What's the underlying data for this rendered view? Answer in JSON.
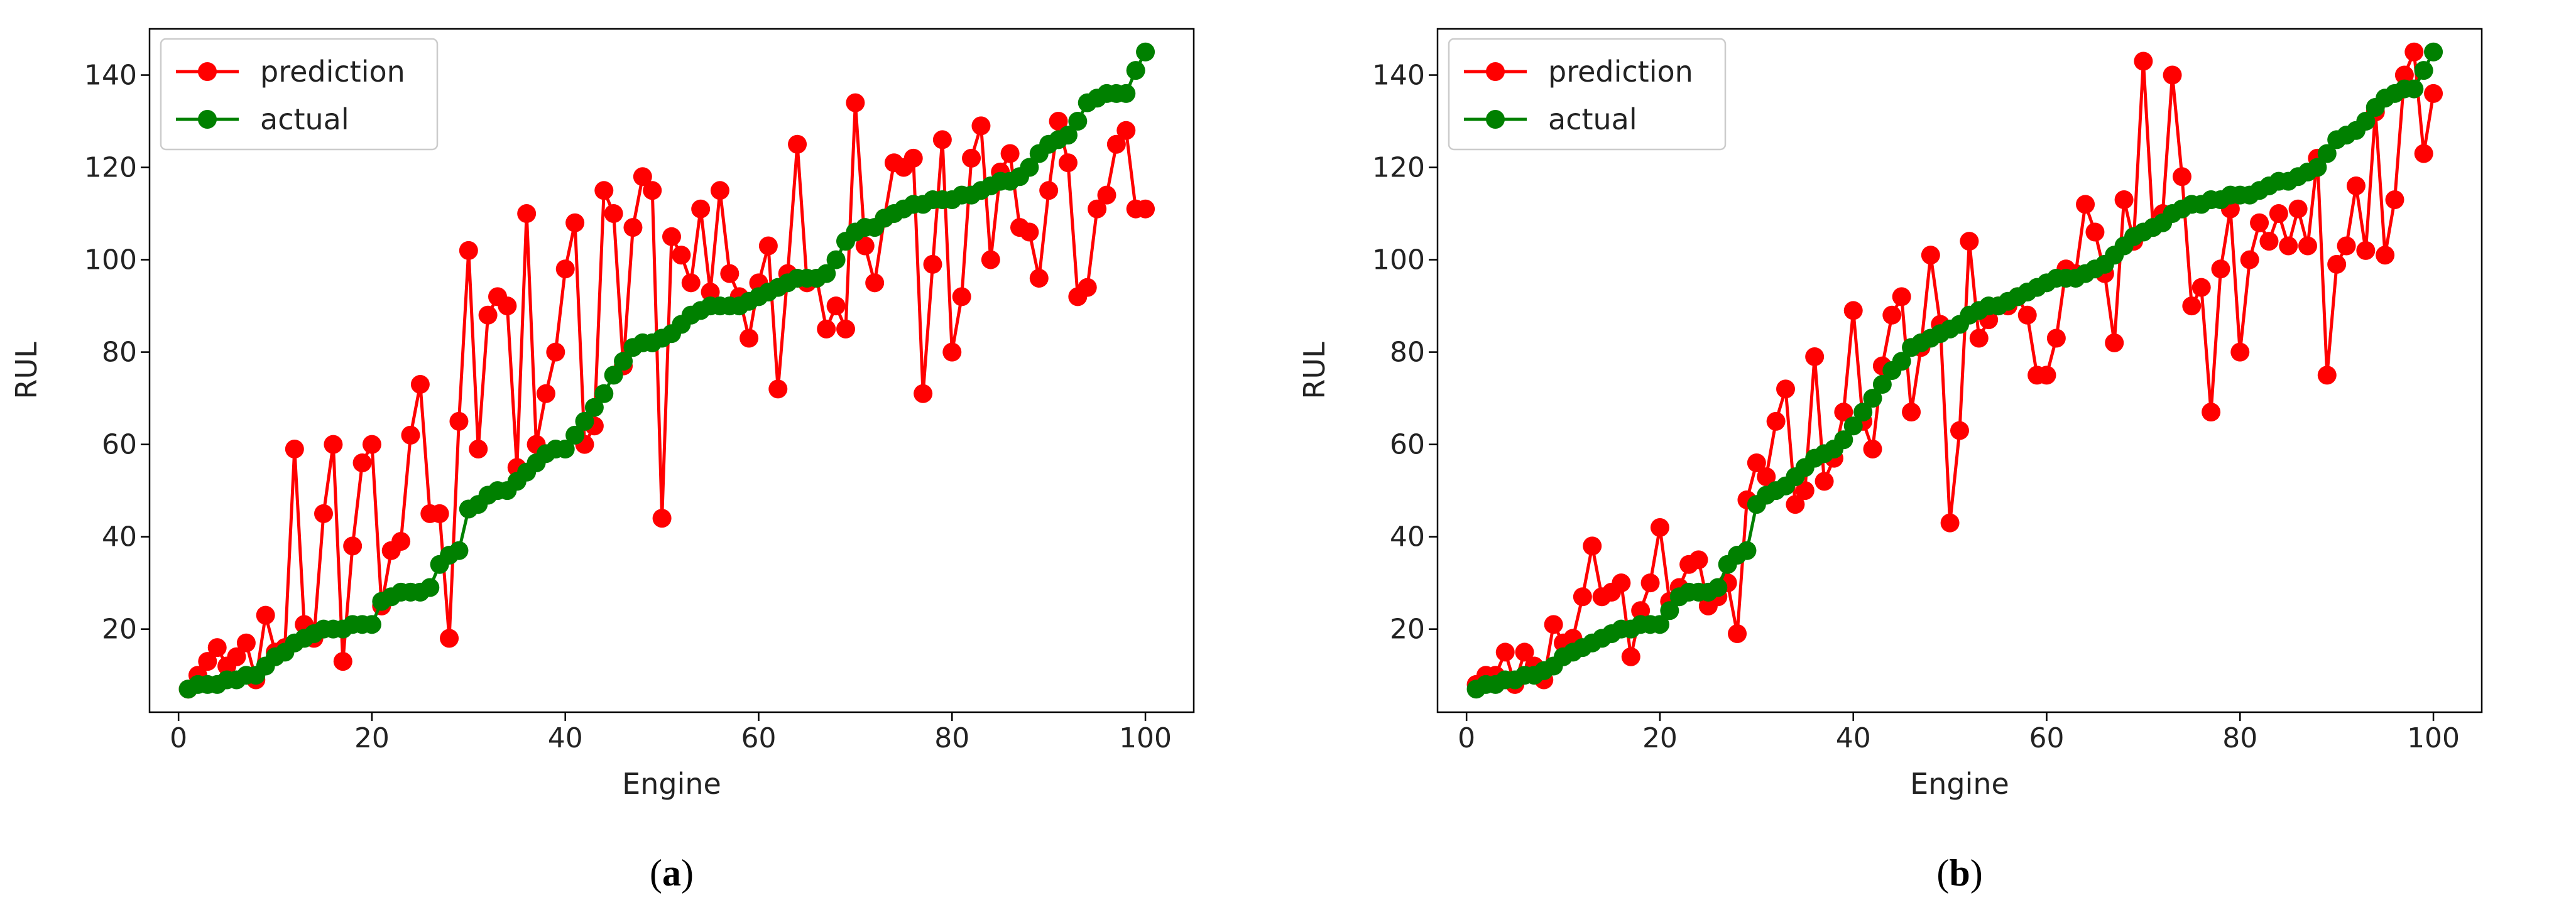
{
  "colors": {
    "prediction": "#ff0000",
    "actual": "#008000"
  },
  "chart_data": [
    {
      "panel": "a",
      "type": "line",
      "caption_letter": "a",
      "xlabel": "Engine",
      "ylabel": "RUL",
      "xlim": [
        -3,
        105
      ],
      "ylim": [
        2,
        150
      ],
      "xticks": [
        0,
        20,
        40,
        60,
        80,
        100
      ],
      "yticks": [
        20,
        40,
        60,
        80,
        100,
        120,
        140
      ],
      "grid": false,
      "legend_position": "top-left",
      "x": [
        1,
        2,
        3,
        4,
        5,
        6,
        7,
        8,
        9,
        10,
        11,
        12,
        13,
        14,
        15,
        16,
        17,
        18,
        19,
        20,
        21,
        22,
        23,
        24,
        25,
        26,
        27,
        28,
        29,
        30,
        31,
        32,
        33,
        34,
        35,
        36,
        37,
        38,
        39,
        40,
        41,
        42,
        43,
        44,
        45,
        46,
        47,
        48,
        49,
        50,
        51,
        52,
        53,
        54,
        55,
        56,
        57,
        58,
        59,
        60,
        61,
        62,
        63,
        64,
        65,
        66,
        67,
        68,
        69,
        70,
        71,
        72,
        73,
        74,
        75,
        76,
        77,
        78,
        79,
        80,
        81,
        82,
        83,
        84,
        85,
        86,
        87,
        88,
        89,
        90,
        91,
        92,
        93,
        94,
        95,
        96,
        97,
        98,
        99,
        100
      ],
      "series": [
        {
          "name": "prediction",
          "values": [
            7,
            10,
            13,
            16,
            12,
            14,
            17,
            9,
            23,
            15,
            16,
            59,
            21,
            18,
            45,
            60,
            13,
            38,
            56,
            60,
            25,
            37,
            39,
            62,
            73,
            45,
            45,
            18,
            65,
            102,
            59,
            88,
            92,
            90,
            55,
            110,
            60,
            71,
            80,
            98,
            108,
            60,
            64,
            115,
            110,
            77,
            107,
            118,
            115,
            44,
            105,
            101,
            95,
            111,
            93,
            115,
            97,
            92,
            83,
            95,
            103,
            72,
            97,
            125,
            95,
            96,
            85,
            90,
            85,
            134,
            103,
            95,
            109,
            121,
            120,
            122,
            71,
            99,
            126,
            80,
            92,
            122,
            129,
            100,
            119,
            123,
            107,
            106,
            96,
            115,
            130,
            121,
            92,
            94,
            111,
            114,
            125,
            128,
            111,
            111
          ]
        },
        {
          "name": "actual",
          "values": [
            7,
            8,
            8,
            8,
            9,
            9,
            10,
            10,
            12,
            14,
            15,
            17,
            18,
            19,
            20,
            20,
            20,
            21,
            21,
            21,
            26,
            27,
            28,
            28,
            28,
            29,
            34,
            36,
            37,
            46,
            47,
            49,
            50,
            50,
            52,
            54,
            56,
            58,
            59,
            59,
            62,
            65,
            68,
            71,
            75,
            78,
            81,
            82,
            82,
            83,
            84,
            86,
            88,
            89,
            90,
            90,
            90,
            90,
            91,
            92,
            93,
            94,
            95,
            96,
            96,
            96,
            97,
            100,
            104,
            106,
            107,
            107,
            109,
            110,
            111,
            112,
            112,
            113,
            113,
            113,
            114,
            114,
            115,
            116,
            117,
            117,
            118,
            120,
            123,
            125,
            126,
            127,
            130,
            134,
            135,
            136,
            136,
            136,
            141,
            145
          ]
        }
      ]
    },
    {
      "panel": "b",
      "type": "line",
      "caption_letter": "b",
      "xlabel": "Engine",
      "ylabel": "RUL",
      "xlim": [
        -3,
        105
      ],
      "ylim": [
        2,
        150
      ],
      "xticks": [
        0,
        20,
        40,
        60,
        80,
        100
      ],
      "yticks": [
        20,
        40,
        60,
        80,
        100,
        120,
        140
      ],
      "grid": false,
      "legend_position": "top-left",
      "x": [
        1,
        2,
        3,
        4,
        5,
        6,
        7,
        8,
        9,
        10,
        11,
        12,
        13,
        14,
        15,
        16,
        17,
        18,
        19,
        20,
        21,
        22,
        23,
        24,
        25,
        26,
        27,
        28,
        29,
        30,
        31,
        32,
        33,
        34,
        35,
        36,
        37,
        38,
        39,
        40,
        41,
        42,
        43,
        44,
        45,
        46,
        47,
        48,
        49,
        50,
        51,
        52,
        53,
        54,
        55,
        56,
        57,
        58,
        59,
        60,
        61,
        62,
        63,
        64,
        65,
        66,
        67,
        68,
        69,
        70,
        71,
        72,
        73,
        74,
        75,
        76,
        77,
        78,
        79,
        80,
        81,
        82,
        83,
        84,
        85,
        86,
        87,
        88,
        89,
        90,
        91,
        92,
        93,
        94,
        95,
        96,
        97,
        98,
        99,
        100
      ],
      "series": [
        {
          "name": "prediction",
          "values": [
            8,
            10,
            10,
            15,
            8,
            15,
            12,
            9,
            21,
            17,
            18,
            27,
            38,
            27,
            28,
            30,
            14,
            24,
            30,
            42,
            26,
            29,
            34,
            35,
            25,
            27,
            30,
            19,
            48,
            56,
            53,
            65,
            72,
            47,
            50,
            79,
            52,
            57,
            67,
            89,
            65,
            59,
            77,
            88,
            92,
            67,
            81,
            101,
            86,
            43,
            63,
            104,
            83,
            87,
            90,
            90,
            92,
            88,
            75,
            75,
            83,
            98,
            97,
            112,
            106,
            97,
            82,
            113,
            104,
            143,
            107,
            110,
            140,
            118,
            90,
            94,
            67,
            98,
            111,
            80,
            100,
            108,
            104,
            110,
            103,
            111,
            103,
            122,
            75,
            99,
            103,
            116,
            102,
            132,
            101,
            113,
            140,
            145,
            123,
            136
          ]
        },
        {
          "name": "actual",
          "values": [
            7,
            8,
            8,
            9,
            9,
            10,
            10,
            11,
            12,
            14,
            15,
            16,
            17,
            18,
            19,
            20,
            20,
            21,
            21,
            21,
            24,
            27,
            28,
            28,
            28,
            29,
            34,
            36,
            37,
            47,
            49,
            50,
            51,
            53,
            55,
            57,
            58,
            59,
            61,
            64,
            67,
            70,
            73,
            76,
            78,
            81,
            82,
            83,
            84,
            85,
            86,
            88,
            89,
            90,
            90,
            91,
            92,
            93,
            94,
            95,
            96,
            96,
            96,
            97,
            98,
            99,
            101,
            103,
            105,
            106,
            107,
            108,
            110,
            111,
            112,
            112,
            113,
            113,
            114,
            114,
            114,
            115,
            116,
            117,
            117,
            118,
            119,
            120,
            123,
            126,
            127,
            128,
            130,
            133,
            135,
            136,
            137,
            137,
            141,
            145
          ]
        }
      ]
    }
  ]
}
